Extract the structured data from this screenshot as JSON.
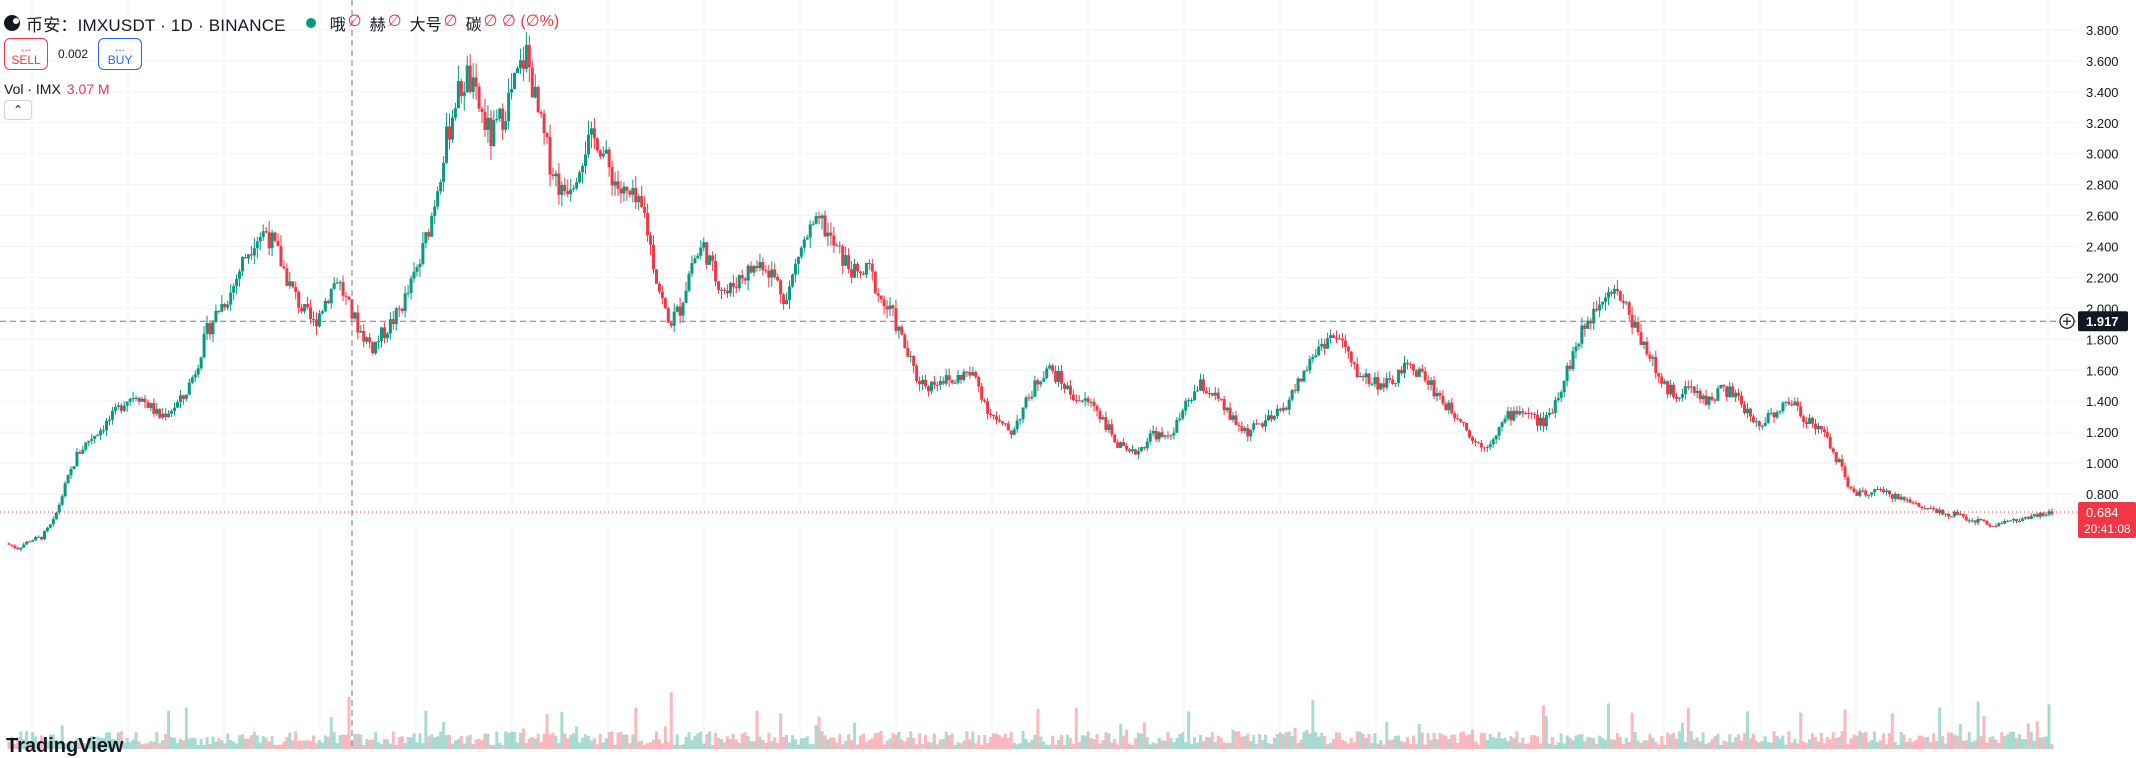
{
  "header": {
    "symbol": "币安：IMXUSDT · 1D · BINANCE",
    "ohlc": [
      {
        "label": "哦",
        "value": "∅"
      },
      {
        "label": "赫",
        "value": "∅"
      },
      {
        "label": "大号",
        "value": "∅"
      },
      {
        "label": "碳",
        "value": "∅ ∅ (∅%)"
      }
    ]
  },
  "trade": {
    "sell_label": "SELL",
    "sell_price": "...",
    "buy_label": "BUY",
    "buy_price": "...",
    "spread": "0.002"
  },
  "volume": {
    "label": "Vol · IMX",
    "value": "3.07 M"
  },
  "collapse_icon": "chevron-up-icon",
  "brand": "TradingView",
  "colors": {
    "up": "#089981",
    "down": "#f23645",
    "crosshair_badge": "#131722",
    "price_badge": "#f23645"
  },
  "chart_data": {
    "type": "candlestick",
    "y_axis": {
      "ticks": [
        "3.800",
        "3.600",
        "3.400",
        "3.200",
        "3.000",
        "2.800",
        "2.600",
        "2.400",
        "2.200",
        "2.000",
        "1.800",
        "1.600",
        "1.400",
        "1.200",
        "1.000",
        "0.800"
      ],
      "range": [
        0.6,
        3.9
      ]
    },
    "crosshair_price": "1.917",
    "last_price": "0.684",
    "countdown": "20:41:08",
    "grid": true,
    "closes": [
      0.48,
      0.45,
      0.5,
      0.52,
      0.62,
      0.85,
      1.05,
      1.15,
      1.22,
      1.3,
      1.4,
      1.45,
      1.38,
      1.3,
      1.35,
      1.42,
      1.6,
      1.85,
      2.0,
      2.1,
      2.3,
      2.45,
      2.5,
      2.35,
      2.15,
      2.0,
      1.9,
      2.05,
      2.2,
      2.0,
      1.85,
      1.75,
      1.85,
      1.95,
      2.1,
      2.3,
      2.6,
      3.0,
      3.35,
      3.5,
      3.3,
      3.1,
      3.25,
      3.45,
      3.65,
      3.25,
      2.95,
      2.75,
      2.85,
      3.05,
      3.1,
      2.9,
      2.75,
      2.7,
      2.6,
      2.2,
      1.9,
      2.0,
      2.3,
      2.4,
      2.2,
      2.1,
      2.2,
      2.25,
      2.3,
      2.2,
      2.05,
      2.35,
      2.5,
      2.55,
      2.4,
      2.3,
      2.2,
      2.25,
      2.05,
      1.95,
      1.75,
      1.55,
      1.5,
      1.55,
      1.52,
      1.58,
      1.55,
      1.35,
      1.25,
      1.2,
      1.35,
      1.5,
      1.62,
      1.55,
      1.45,
      1.4,
      1.38,
      1.25,
      1.12,
      1.05,
      1.1,
      1.2,
      1.15,
      1.25,
      1.4,
      1.5,
      1.45,
      1.35,
      1.25,
      1.2,
      1.25,
      1.28,
      1.35,
      1.48,
      1.62,
      1.75,
      1.82,
      1.78,
      1.6,
      1.55,
      1.52,
      1.5,
      1.6,
      1.62,
      1.55,
      1.45,
      1.35,
      1.3,
      1.15,
      1.1,
      1.2,
      1.3,
      1.35,
      1.3,
      1.25,
      1.4,
      1.6,
      1.8,
      1.95,
      2.1,
      2.15,
      2.0,
      1.85,
      1.7,
      1.5,
      1.45,
      1.48,
      1.45,
      1.4,
      1.48,
      1.45,
      1.35,
      1.25,
      1.3,
      1.35,
      1.4,
      1.3,
      1.25,
      1.15,
      1.0,
      0.82,
      0.8,
      0.82,
      0.8,
      0.78,
      0.75,
      0.72,
      0.7,
      0.68,
      0.66,
      0.64,
      0.62,
      0.6,
      0.62,
      0.63,
      0.64,
      0.66,
      0.684
    ]
  }
}
